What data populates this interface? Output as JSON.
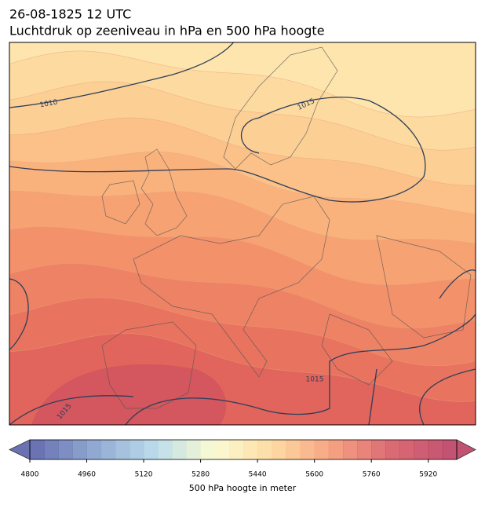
{
  "header": {
    "title": "26-08-1825 12 UTC",
    "subtitle": "Luchtdruk op zeeniveau in hPa en 500 hPa hoogte"
  },
  "map": {
    "contour_labels": [
      "1010",
      "1015",
      "1015",
      "1015"
    ]
  },
  "colorbar": {
    "range": [
      4800,
      6000
    ],
    "ticks": [
      4800,
      4960,
      5120,
      5280,
      5440,
      5600,
      5760,
      5920
    ],
    "label": "500 hPa hoogte in meter"
  }
}
